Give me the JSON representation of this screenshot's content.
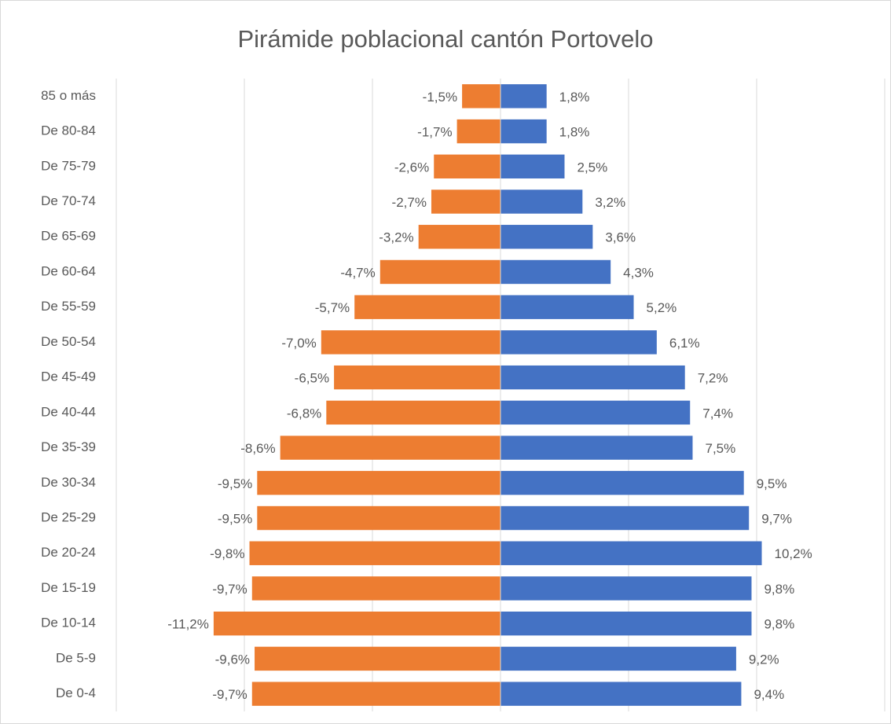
{
  "chart_data": {
    "type": "bar",
    "orientation": "horizontal",
    "stacked": true,
    "title": "Pirámide poblacional cantón Portovelo",
    "categories": [
      "85 o más",
      "De 80-84",
      "De 75-79",
      "De 70-74",
      "De 65-69",
      "De 60-64",
      "De 55-59",
      "De 50-54",
      "De 45-49",
      "De 40-44",
      "De 35-39",
      "De 30-34",
      "De 25-29",
      "De 20-24",
      "De 15-19",
      "De 10-14",
      "De 5-9",
      "De 0-4"
    ],
    "series": [
      {
        "color": "#ed7d31",
        "values": [
          -1.5,
          -1.7,
          -2.6,
          -2.7,
          -3.2,
          -4.7,
          -5.7,
          -7.0,
          -6.5,
          -6.8,
          -8.6,
          -9.5,
          -9.5,
          -9.8,
          -9.7,
          -11.2,
          -9.6,
          -9.7
        ],
        "value_labels": [
          "-1,5%",
          "-1,7%",
          "-2,6%",
          "-2,7%",
          "-3,2%",
          "-4,7%",
          "-5,7%",
          "-7,0%",
          "-6,5%",
          "-6,8%",
          "-8,6%",
          "-9,5%",
          "-9,5%",
          "-9,8%",
          "-9,7%",
          "-11,2%",
          "-9,6%",
          "-9,7%"
        ]
      },
      {
        "color": "#4472c4",
        "values": [
          1.8,
          1.8,
          2.5,
          3.2,
          3.6,
          4.3,
          5.2,
          6.1,
          7.2,
          7.4,
          7.5,
          9.5,
          9.7,
          10.2,
          9.8,
          9.8,
          9.2,
          9.4
        ],
        "value_labels": [
          "1,8%",
          "1,8%",
          "2,5%",
          "3,2%",
          "3,6%",
          "4,3%",
          "5,2%",
          "6,1%",
          "7,2%",
          "7,4%",
          "7,5%",
          "9,5%",
          "9,7%",
          "10,2%",
          "9,8%",
          "9,8%",
          "9,2%",
          "9,4%"
        ]
      }
    ],
    "xlim": [
      -15,
      15
    ],
    "xticks": [
      -15,
      -10,
      -5,
      0,
      5,
      10,
      15
    ],
    "grid": true
  }
}
